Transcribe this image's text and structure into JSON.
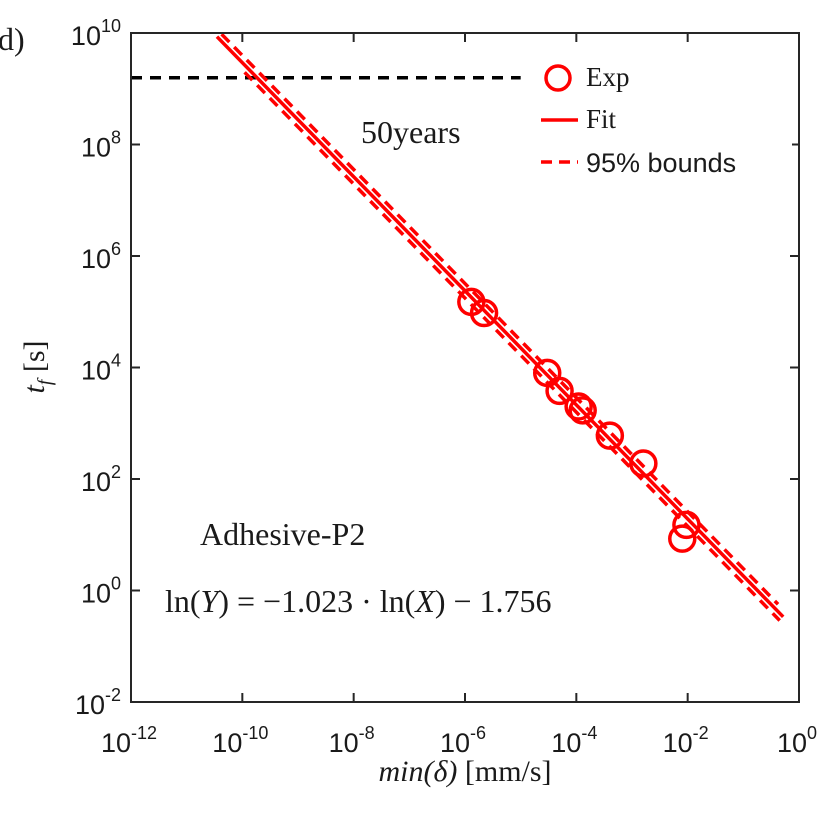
{
  "chart_data": {
    "type": "scatter",
    "panel_label": "d)",
    "xscale": "log",
    "yscale": "log",
    "xlim": [
      1e-12,
      1
    ],
    "ylim": [
      0.01,
      10000000000.0
    ],
    "xlabel": {
      "main": "min(",
      "accent": "δ",
      "close": ")",
      "unit": " [mm/s]"
    },
    "ylabel": {
      "main": "t",
      "sub": "f",
      "unit": " [s]"
    },
    "x_ticks": [
      {
        "value": 1e-12,
        "base": "10",
        "exp": "-12"
      },
      {
        "value": 1e-10,
        "base": "10",
        "exp": "-10"
      },
      {
        "value": 1e-08,
        "base": "10",
        "exp": "-8"
      },
      {
        "value": 1e-06,
        "base": "10",
        "exp": "-6"
      },
      {
        "value": 0.0001,
        "base": "10",
        "exp": "-4"
      },
      {
        "value": 0.01,
        "base": "10",
        "exp": "-2"
      },
      {
        "value": 1,
        "base": "10",
        "exp": "0"
      }
    ],
    "y_ticks": [
      {
        "value": 0.01,
        "base": "10",
        "exp": "-2"
      },
      {
        "value": 1,
        "base": "10",
        "exp": "0"
      },
      {
        "value": 100,
        "base": "10",
        "exp": "2"
      },
      {
        "value": 10000,
        "base": "10",
        "exp": "4"
      },
      {
        "value": 1000000,
        "base": "10",
        "exp": "6"
      },
      {
        "value": 100000000,
        "base": "10",
        "exp": "8"
      },
      {
        "value": 10000000000,
        "base": "10",
        "exp": "10"
      }
    ],
    "series": [
      {
        "name": "Exp",
        "kind": "markers",
        "marker": "circle-open",
        "points": [
          {
            "x": 1.3e-06,
            "y": 150000
          },
          {
            "x": 2.2e-06,
            "y": 95000
          },
          {
            "x": 3e-05,
            "y": 8000
          },
          {
            "x": 5e-05,
            "y": 3800
          },
          {
            "x": 0.00011,
            "y": 2000
          },
          {
            "x": 0.00013,
            "y": 1700
          },
          {
            "x": 0.0004,
            "y": 600
          },
          {
            "x": 0.0016,
            "y": 190
          },
          {
            "x": 0.008,
            "y": 8.5
          },
          {
            "x": 0.0095,
            "y": 15
          }
        ]
      },
      {
        "name": "Fit",
        "kind": "line",
        "style": "solid",
        "intercept_ln": -1.756,
        "slope": -1.023,
        "x_range": [
          3.5e-11,
          0.52
        ]
      },
      {
        "name": "95% bounds",
        "kind": "line",
        "style": "dashed",
        "intercept_ln": -1.456,
        "slope": -1.023,
        "x_range": [
          1.5e-11,
          0.42
        ]
      },
      {
        "name": "95% bounds",
        "kind": "line",
        "style": "dashed",
        "intercept_ln": -2.056,
        "slope": -1.023,
        "x_range": [
          1.1e-10,
          0.45
        ]
      },
      {
        "name": "50years",
        "kind": "line",
        "style": "dashed",
        "color": "#000000",
        "y": 1576800000,
        "x_range": [
          1e-12,
          1e-05
        ]
      }
    ],
    "legend": {
      "placement": "top-right",
      "entries": [
        {
          "label": "Exp",
          "font": "serif",
          "symbol": "circle"
        },
        {
          "label": "Fit",
          "font": "serif",
          "symbol": "solid-line"
        },
        {
          "label": "95% bounds",
          "font": "sans",
          "symbol": "dashed-line"
        }
      ]
    },
    "annotations": {
      "fifty_years": "50years",
      "material": "Adhesive-P2",
      "equation": {
        "p1": "ln(",
        "Y": "Y",
        "p2": ") = −1.023 · ln(",
        "X": "X",
        "p3": ") − 1.756"
      }
    },
    "colors": {
      "series": "#ff0000",
      "reference": "#000000",
      "axis": "#262626"
    }
  }
}
